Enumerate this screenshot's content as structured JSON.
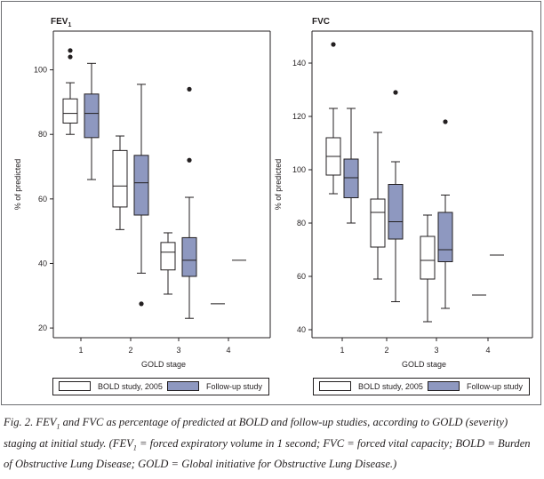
{
  "chart_data": [
    {
      "type": "boxplot",
      "title": "FEV",
      "title_subscript": "1",
      "ylabel": "% of predicted",
      "xlabel": "GOLD stage",
      "ylim": [
        17,
        112
      ],
      "yticks": [
        20,
        40,
        60,
        80,
        100
      ],
      "categories": [
        "1",
        "2",
        "3",
        "4"
      ],
      "series": [
        {
          "name": "BOLD study, 2005",
          "color": "#ffffff",
          "boxes": [
            {
              "category": "1",
              "whisker_low": 80,
              "q1": 83.5,
              "median": 86.5,
              "q3": 91,
              "whisker_high": 96,
              "outliers": [
                104,
                106
              ]
            },
            {
              "category": "2",
              "whisker_low": 50.5,
              "q1": 57.5,
              "median": 64,
              "q3": 75,
              "whisker_high": 79.5,
              "outliers": []
            },
            {
              "category": "3",
              "whisker_low": 30.5,
              "q1": 38,
              "median": 43.5,
              "q3": 46.5,
              "whisker_high": 49.5,
              "outliers": []
            },
            {
              "category": "4",
              "single_value": 27.5
            }
          ]
        },
        {
          "name": "Follow-up study",
          "color": "#8e98c0",
          "boxes": [
            {
              "category": "1",
              "whisker_low": 66,
              "q1": 79,
              "median": 86.5,
              "q3": 92.5,
              "whisker_high": 102,
              "outliers": []
            },
            {
              "category": "2",
              "whisker_low": 37,
              "q1": 55,
              "median": 65,
              "q3": 73.5,
              "whisker_high": 95.5,
              "outliers": [
                27.5
              ]
            },
            {
              "category": "3",
              "whisker_low": 23,
              "q1": 36,
              "median": 41,
              "q3": 48,
              "whisker_high": 60.5,
              "outliers": [
                72,
                94
              ]
            },
            {
              "category": "4",
              "single_value": 41
            }
          ]
        }
      ]
    },
    {
      "type": "boxplot",
      "title": "FVC",
      "ylabel": "% of predicted",
      "xlabel": "GOLD stage",
      "ylim": [
        37,
        152
      ],
      "yticks": [
        40,
        60,
        80,
        100,
        120,
        140
      ],
      "categories": [
        "1",
        "2",
        "3",
        "4"
      ],
      "series": [
        {
          "name": "BOLD study, 2005",
          "color": "#ffffff",
          "boxes": [
            {
              "category": "1",
              "whisker_low": 91,
              "q1": 98,
              "median": 105,
              "q3": 112,
              "whisker_high": 123,
              "outliers": [
                147
              ]
            },
            {
              "category": "2",
              "whisker_low": 59,
              "q1": 71,
              "median": 84,
              "q3": 89,
              "whisker_high": 114,
              "outliers": []
            },
            {
              "category": "3",
              "whisker_low": 43,
              "q1": 59,
              "median": 66,
              "q3": 75,
              "whisker_high": 83,
              "outliers": []
            },
            {
              "category": "4",
              "single_value": 53
            }
          ]
        },
        {
          "name": "Follow-up study",
          "color": "#8e98c0",
          "boxes": [
            {
              "category": "1",
              "whisker_low": 80,
              "q1": 89.5,
              "median": 97,
              "q3": 104,
              "whisker_high": 123,
              "outliers": []
            },
            {
              "category": "2",
              "whisker_low": 50.5,
              "q1": 74,
              "median": 80.5,
              "q3": 94.5,
              "whisker_high": 103,
              "outliers": [
                129
              ]
            },
            {
              "category": "3",
              "whisker_low": 48,
              "q1": 65.5,
              "median": 70,
              "q3": 84,
              "whisker_high": 90.5,
              "outliers": [
                118
              ]
            },
            {
              "category": "4",
              "single_value": 68
            }
          ]
        }
      ]
    }
  ],
  "legend": {
    "items": [
      {
        "label": "BOLD study, 2005",
        "color": "#ffffff"
      },
      {
        "label": "Follow-up study",
        "color": "#8e98c0"
      }
    ]
  },
  "caption": {
    "p1": "Fig. 2. FEV",
    "sub1": "1",
    "p2": " and FVC as percentage of predicted at BOLD and follow-up studies, according to GOLD (severity) staging at initial study. (FEV",
    "sub2": "1",
    "p3": " = forced expiratory volume in 1 second; FVC = forced vital capacity; BOLD = Burden of Obstructive Lung Disease; GOLD = Global initiative for Obstructive Lung Disease.)"
  }
}
